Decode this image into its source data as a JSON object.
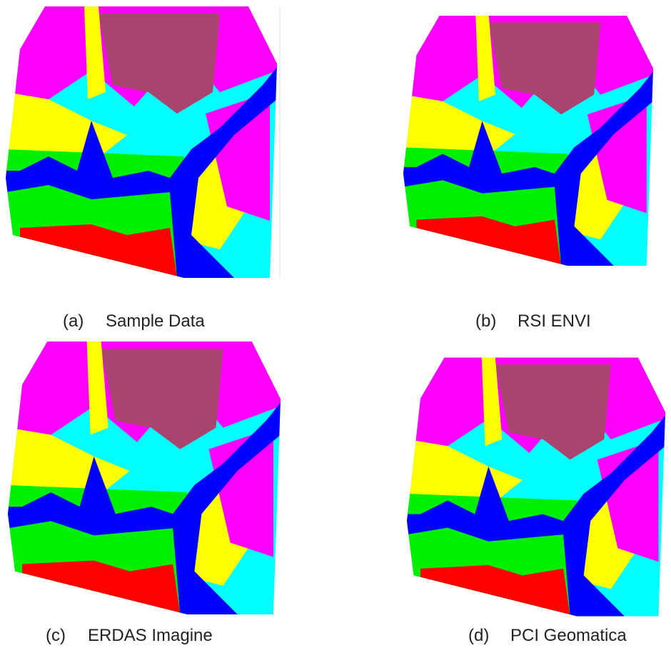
{
  "panels": [
    {
      "label": "(a)",
      "title": "Sample Data"
    },
    {
      "label": "(b)",
      "title": "RSI ENVI"
    },
    {
      "label": "(c)",
      "title": "ERDAS Imagine"
    },
    {
      "label": "(d)",
      "title": "PCI Geomatica"
    }
  ]
}
